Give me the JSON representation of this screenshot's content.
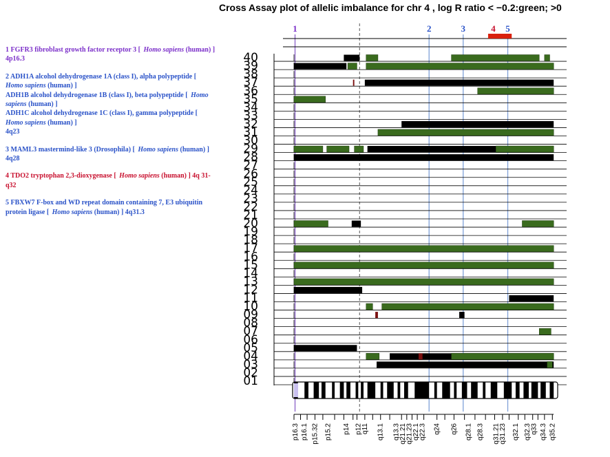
{
  "title": "Cross Assay plot of allelic imbalance for chr 4 , log R ratio < −0.2:green; >0",
  "genes": [
    {
      "lines": [
        {
          "parts": [
            {
              "t": "1 FGFR3 fibroblast growth factor receptor 3 [ "
            },
            {
              "t": "Homo sapiens",
              "i": true
            },
            {
              "t": " (human) ] 4p16.3"
            }
          ]
        }
      ],
      "color": "#7b2fc9"
    },
    {
      "lines": [
        {
          "parts": [
            {
              "t": "2 ADH1A alcohol dehydrogenase 1A (class I), alpha polypeptide [ "
            },
            {
              "t": "Homo sapiens",
              "i": true
            },
            {
              "t": " (human) ]"
            }
          ]
        },
        {
          "parts": [
            {
              "t": "ADH1B alcohol dehydrogenase 1B (class I), beta polypeptide [ "
            },
            {
              "t": "Homo sapiens",
              "i": true
            },
            {
              "t": " (human) ]"
            }
          ]
        },
        {
          "parts": [
            {
              "t": "ADH1C alcohol dehydrogenase 1C (class I), gamma polypeptide [ "
            },
            {
              "t": "Homo sapiens",
              "i": true
            },
            {
              "t": " (human) ]"
            }
          ]
        },
        {
          "parts": [
            {
              "t": "4q23"
            }
          ]
        }
      ],
      "color": "#2a52c8"
    },
    {
      "lines": [
        {
          "parts": [
            {
              "t": "3 MAML3 mastermind-like 3 (Drosophila) [ "
            },
            {
              "t": "Homo sapiens",
              "i": true
            },
            {
              "t": " (human) ] 4q28"
            }
          ]
        }
      ],
      "color": "#2a52c8"
    },
    {
      "lines": [
        {
          "parts": [
            {
              "t": "4 TDO2 tryptophan 2,3-dioxygenase [ "
            },
            {
              "t": "Homo sapiens",
              "i": true
            },
            {
              "t": " (human) ] 4q 31-q32"
            }
          ]
        }
      ],
      "color": "#c8102e"
    },
    {
      "lines": [
        {
          "parts": [
            {
              "t": "5 FBXW7 F-box and WD repeat domain containing 7, E3 ubiquitin protein ligase [ "
            },
            {
              "t": "Homo sapiens",
              "i": true
            },
            {
              "t": " (human) ] 4q31.3"
            }
          ]
        }
      ],
      "color": "#2a52c8"
    }
  ],
  "chart_data": {
    "type": "heatmap",
    "title": "Cross Assay plot of allelic imbalance for chr 4 , log R ratio < −0.2:green; >0",
    "samples": [
      "01",
      "02",
      "03",
      "04",
      "05",
      "06",
      "07",
      "08",
      "09",
      "10",
      "11",
      "12",
      "13",
      "14",
      "15",
      "16",
      "17",
      "18",
      "19",
      "20",
      "21",
      "22",
      "23",
      "24",
      "25",
      "26",
      "27",
      "28",
      "29",
      "30",
      "31",
      "32",
      "33",
      "34",
      "35",
      "36",
      "37",
      "38",
      "39",
      "40"
    ],
    "xrange": [
      0,
      1
    ],
    "centromere": 0.25,
    "colors": {
      "green": "#3a6b1e",
      "black": "#000000",
      "red": "#7a1010",
      "grid": "#000000",
      "gene_line": "#7fa0d8",
      "gene1_line": "#8a60c8"
    },
    "gene_markers": [
      {
        "label": "1",
        "pos": 0.004,
        "color": "#7b2fc9"
      },
      {
        "label": "2",
        "pos": 0.515,
        "color": "#2a52c8"
      },
      {
        "label": "3",
        "pos": 0.645,
        "color": "#2a52c8"
      },
      {
        "label": "4",
        "pos": 0.76,
        "color": "#c8102e"
      },
      {
        "label": "5",
        "pos": 0.815,
        "color": "#2a52c8"
      }
    ],
    "tdo2_region": [
      0.74,
      0.83
    ],
    "segments": [
      {
        "s": "03",
        "c": "black",
        "x0": 0.315,
        "x1": 0.99
      },
      {
        "s": "03",
        "c": "green",
        "x0": 0.965,
        "x1": 0.985
      },
      {
        "s": "04",
        "c": "green",
        "x0": 0.275,
        "x1": 0.325
      },
      {
        "s": "04",
        "c": "black",
        "x0": 0.365,
        "x1": 0.6
      },
      {
        "s": "04",
        "c": "red",
        "x0": 0.475,
        "x1": 0.49
      },
      {
        "s": "04",
        "c": "black",
        "x0": 0.6,
        "x1": 0.99
      },
      {
        "s": "04",
        "c": "green",
        "x0": 0.6,
        "x1": 0.99
      },
      {
        "s": "05",
        "c": "black",
        "x0": 0.0,
        "x1": 0.24
      },
      {
        "s": "07",
        "c": "green",
        "x0": 0.935,
        "x1": 0.98
      },
      {
        "s": "09",
        "c": "red",
        "x0": 0.31,
        "x1": 0.32
      },
      {
        "s": "09",
        "c": "black",
        "x0": 0.63,
        "x1": 0.65
      },
      {
        "s": "10",
        "c": "green",
        "x0": 0.275,
        "x1": 0.3
      },
      {
        "s": "10",
        "c": "green",
        "x0": 0.335,
        "x1": 0.99
      },
      {
        "s": "11",
        "c": "black",
        "x0": 0.82,
        "x1": 0.99
      },
      {
        "s": "12",
        "c": "black",
        "x0": 0.0,
        "x1": 0.26
      },
      {
        "s": "13",
        "c": "green",
        "x0": 0.0,
        "x1": 0.99
      },
      {
        "s": "15",
        "c": "green",
        "x0": 0.0,
        "x1": 0.99
      },
      {
        "s": "17",
        "c": "green",
        "x0": 0.0,
        "x1": 0.99
      },
      {
        "s": "20",
        "c": "green",
        "x0": 0.0,
        "x1": 0.13
      },
      {
        "s": "20",
        "c": "black",
        "x0": 0.22,
        "x1": 0.255
      },
      {
        "s": "20",
        "c": "green",
        "x0": 0.87,
        "x1": 0.99
      },
      {
        "s": "28",
        "c": "black",
        "x0": 0.0,
        "x1": 0.99
      },
      {
        "s": "29",
        "c": "green",
        "x0": 0.0,
        "x1": 0.11
      },
      {
        "s": "29",
        "c": "green",
        "x0": 0.125,
        "x1": 0.21
      },
      {
        "s": "29",
        "c": "green",
        "x0": 0.23,
        "x1": 0.265
      },
      {
        "s": "29",
        "c": "black",
        "x0": 0.28,
        "x1": 0.77
      },
      {
        "s": "29",
        "c": "green",
        "x0": 0.77,
        "x1": 0.99
      },
      {
        "s": "31",
        "c": "green",
        "x0": 0.32,
        "x1": 0.99
      },
      {
        "s": "32",
        "c": "black",
        "x0": 0.41,
        "x1": 0.99
      },
      {
        "s": "35",
        "c": "green",
        "x0": 0.0,
        "x1": 0.12
      },
      {
        "s": "36",
        "c": "green",
        "x0": 0.7,
        "x1": 0.99
      },
      {
        "s": "37",
        "c": "black",
        "x0": 0.27,
        "x1": 0.99
      },
      {
        "s": "37",
        "c": "red",
        "x0": 0.225,
        "x1": 0.23
      },
      {
        "s": "39",
        "c": "black",
        "x0": 0.0,
        "x1": 0.2
      },
      {
        "s": "39",
        "c": "green",
        "x0": 0.205,
        "x1": 0.24
      },
      {
        "s": "39",
        "c": "green",
        "x0": 0.275,
        "x1": 0.99
      },
      {
        "s": "40",
        "c": "black",
        "x0": 0.19,
        "x1": 0.25
      },
      {
        "s": "40",
        "c": "green",
        "x0": 0.275,
        "x1": 0.32
      },
      {
        "s": "40",
        "c": "green",
        "x0": 0.6,
        "x1": 0.935
      },
      {
        "s": "40",
        "c": "green",
        "x0": 0.955,
        "x1": 0.975
      }
    ],
    "ideogram_blocks": [
      [
        0.0,
        0.015
      ],
      [
        0.04,
        0.055
      ],
      [
        0.075,
        0.095
      ],
      [
        0.105,
        0.12
      ],
      [
        0.145,
        0.155
      ],
      [
        0.175,
        0.19
      ],
      [
        0.2,
        0.215
      ],
      [
        0.235,
        0.245
      ],
      [
        0.255,
        0.265
      ],
      [
        0.28,
        0.31
      ],
      [
        0.33,
        0.34
      ],
      [
        0.355,
        0.38
      ],
      [
        0.395,
        0.405
      ],
      [
        0.42,
        0.435
      ],
      [
        0.46,
        0.515
      ],
      [
        0.535,
        0.545
      ],
      [
        0.565,
        0.595
      ],
      [
        0.61,
        0.62
      ],
      [
        0.64,
        0.66
      ],
      [
        0.675,
        0.7
      ],
      [
        0.72,
        0.73
      ],
      [
        0.75,
        0.775
      ],
      [
        0.8,
        0.83
      ],
      [
        0.845,
        0.86
      ],
      [
        0.875,
        0.895
      ],
      [
        0.905,
        0.93
      ],
      [
        0.94,
        0.96
      ],
      [
        0.975,
        0.99
      ]
    ],
    "bands": [
      {
        "label": "p16.3",
        "pos": 0.005
      },
      {
        "label": "p16.1",
        "pos": 0.04
      },
      {
        "label": "p15.32",
        "pos": 0.08
      },
      {
        "label": "p15.2",
        "pos": 0.13
      },
      {
        "label": "p14",
        "pos": 0.2
      },
      {
        "label": "p12",
        "pos": 0.245
      },
      {
        "label": "q11",
        "pos": 0.27
      },
      {
        "label": "q13.1",
        "pos": 0.33
      },
      {
        "label": "q13.3",
        "pos": 0.39
      },
      {
        "label": "q21.21",
        "pos": 0.415
      },
      {
        "label": "q21.23",
        "pos": 0.44
      },
      {
        "label": "q22.1",
        "pos": 0.465
      },
      {
        "label": "q22.3",
        "pos": 0.49
      },
      {
        "label": "q24",
        "pos": 0.545
      },
      {
        "label": "q26",
        "pos": 0.61
      },
      {
        "label": "q28.1",
        "pos": 0.665
      },
      {
        "label": "q28.3",
        "pos": 0.71
      },
      {
        "label": "q31.21",
        "pos": 0.77
      },
      {
        "label": "q31.23",
        "pos": 0.795
      },
      {
        "label": "q32.1",
        "pos": 0.845
      },
      {
        "label": "q32.3",
        "pos": 0.89
      },
      {
        "label": "q33",
        "pos": 0.915
      },
      {
        "label": "q34.3",
        "pos": 0.95
      },
      {
        "label": "q35.2",
        "pos": 0.985
      }
    ],
    "ticks": [
      0.0,
      0.025,
      0.05,
      0.08,
      0.11,
      0.155,
      0.19,
      0.225,
      0.24,
      0.27,
      0.3,
      0.33,
      0.365,
      0.41,
      0.43,
      0.45,
      0.47,
      0.495,
      0.545,
      0.575,
      0.61,
      0.65,
      0.69,
      0.73,
      0.765,
      0.795,
      0.82,
      0.855,
      0.88,
      0.91,
      0.93,
      0.955,
      0.985
    ]
  }
}
